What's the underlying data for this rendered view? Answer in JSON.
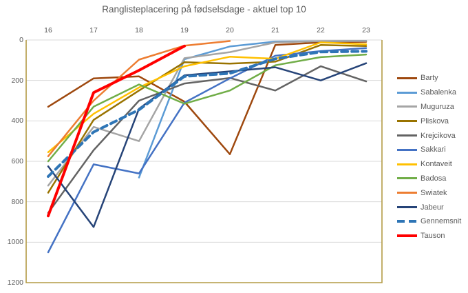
{
  "title": "Ranglisteplacering på fødselsdage - aktuel top 10",
  "colors": {
    "background": "#ffffff",
    "plot_border": "#b49b45",
    "gridline": "#d9d9d9",
    "axis_text": "#595959",
    "title_text": "#595959"
  },
  "chart_data": {
    "type": "line",
    "title": "Ranglisteplacering på fødselsdage - aktuel top 10",
    "xlabel": "",
    "ylabel": "",
    "x_axis_position": "top",
    "categories": [
      16,
      17,
      18,
      19,
      20,
      21,
      22,
      23
    ],
    "x_tick_labels": [
      "16",
      "17",
      "18",
      "19",
      "20",
      "21",
      "22",
      "23"
    ],
    "y_axis": {
      "min": 0,
      "max": 1200,
      "step": 200,
      "inverted": true,
      "tick_labels": [
        "0",
        "200",
        "400",
        "600",
        "800",
        "1000",
        "1200"
      ]
    },
    "grid": true,
    "legend_position": "right",
    "series": [
      {
        "name": "Barty",
        "color": "#9E480E",
        "style": "solid",
        "width": 2.5,
        "values": [
          330,
          190,
          180,
          305,
          565,
          25,
          12,
          9
        ]
      },
      {
        "name": "Sabalenka",
        "color": "#5B9BD5",
        "style": "solid",
        "width": 2.5,
        "values": [
          null,
          null,
          680,
          95,
          32,
          8,
          6,
          4
        ]
      },
      {
        "name": "Muguruza",
        "color": "#A5A5A5",
        "style": "solid",
        "width": 2.5,
        "values": [
          720,
          430,
          500,
          90,
          60,
          12,
          5,
          5
        ]
      },
      {
        "name": "Pliskova",
        "color": "#997300",
        "style": "solid",
        "width": 2.5,
        "values": [
          755,
          395,
          250,
          110,
          117,
          107,
          25,
          30
        ]
      },
      {
        "name": "Krejcikova",
        "color": "#636363",
        "style": "solid",
        "width": 2.5,
        "values": [
          855,
          545,
          300,
          215,
          188,
          250,
          130,
          205
        ]
      },
      {
        "name": "Sakkari",
        "color": "#4472C4",
        "style": "solid",
        "width": 2.5,
        "values": [
          1050,
          615,
          660,
          310,
          190,
          78,
          55,
          40
        ]
      },
      {
        "name": "Kontaveit",
        "color": "#FFC000",
        "style": "solid",
        "width": 2.5,
        "values": [
          555,
          365,
          235,
          130,
          83,
          93,
          12,
          21
        ]
      },
      {
        "name": "Badosa",
        "color": "#70AD47",
        "style": "solid",
        "width": 2.5,
        "values": [
          600,
          330,
          220,
          315,
          250,
          125,
          85,
          72
        ]
      },
      {
        "name": "Swiatek",
        "color": "#ED7D31",
        "style": "solid",
        "width": 2.5,
        "values": [
          575,
          300,
          97,
          28,
          5,
          null,
          null,
          null
        ]
      },
      {
        "name": "Jabeur",
        "color": "#264478",
        "style": "solid",
        "width": 2.5,
        "values": [
          625,
          925,
          340,
          175,
          155,
          135,
          200,
          115
        ]
      },
      {
        "name": "Gennemsnit",
        "color": "#2E75B6",
        "style": "dashed",
        "width": 4,
        "values": [
          675,
          455,
          345,
          180,
          165,
          93,
          59,
          56
        ]
      },
      {
        "name": "Tauson",
        "color": "#FF0000",
        "style": "solid",
        "width": 4,
        "values": [
          870,
          260,
          150,
          30,
          null,
          null,
          null,
          null
        ]
      }
    ]
  }
}
